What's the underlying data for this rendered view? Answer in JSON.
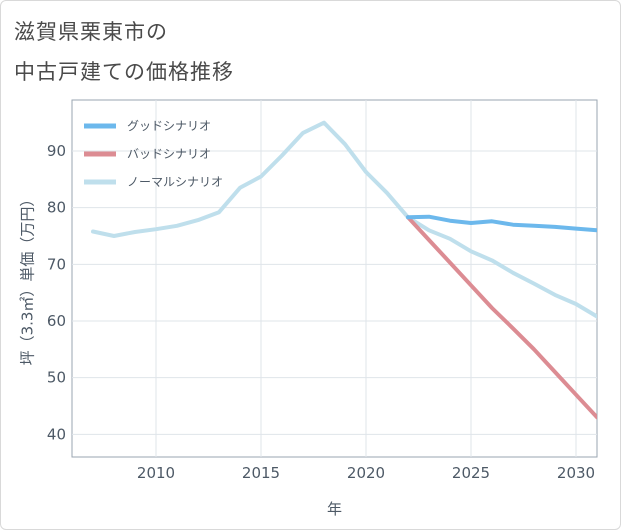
{
  "title_line1": "滋賀県栗東市の",
  "title_line2": "中古戸建ての価格推移",
  "chart_data": {
    "type": "line",
    "xlabel": "年",
    "ylabel": "坪（3.3㎡）単価（万円）",
    "xlim": [
      2006,
      2031
    ],
    "ylim": [
      36,
      99
    ],
    "xticks": [
      2010,
      2015,
      2020,
      2025,
      2030
    ],
    "yticks": [
      40,
      50,
      60,
      70,
      80,
      90
    ],
    "grid": true,
    "legend_position": "top-left",
    "series": [
      {
        "name": "グッドシナリオ",
        "color": "#6cb8ec",
        "x": [
          2022,
          2023,
          2024,
          2025,
          2026,
          2027,
          2028,
          2029,
          2030,
          2031
        ],
        "y": [
          78.3,
          78.4,
          77.7,
          77.3,
          77.6,
          77.0,
          76.8,
          76.6,
          76.3,
          76.0
        ]
      },
      {
        "name": "バッドシナリオ",
        "color": "#dc8c93",
        "x": [
          2022,
          2023,
          2024,
          2025,
          2026,
          2027,
          2028,
          2029,
          2030,
          2031
        ],
        "y": [
          78.3,
          74.3,
          70.3,
          66.3,
          62.3,
          58.7,
          55.0,
          51.0,
          47.0,
          43.0
        ]
      },
      {
        "name": "ノーマルシナリオ",
        "color": "#bfdfec",
        "x": [
          2007,
          2008,
          2009,
          2010,
          2011,
          2012,
          2013,
          2014,
          2015,
          2016,
          2017,
          2018,
          2019,
          2020,
          2021,
          2022,
          2023,
          2024,
          2025,
          2026,
          2027,
          2028,
          2029,
          2030,
          2031
        ],
        "y": [
          75.8,
          75.0,
          75.7,
          76.2,
          76.8,
          77.8,
          79.2,
          83.5,
          85.5,
          89.2,
          93.2,
          95.0,
          91.2,
          86.3,
          82.6,
          78.3,
          76.0,
          74.5,
          72.3,
          70.7,
          68.5,
          66.6,
          64.6,
          63.0,
          60.8
        ]
      }
    ]
  }
}
